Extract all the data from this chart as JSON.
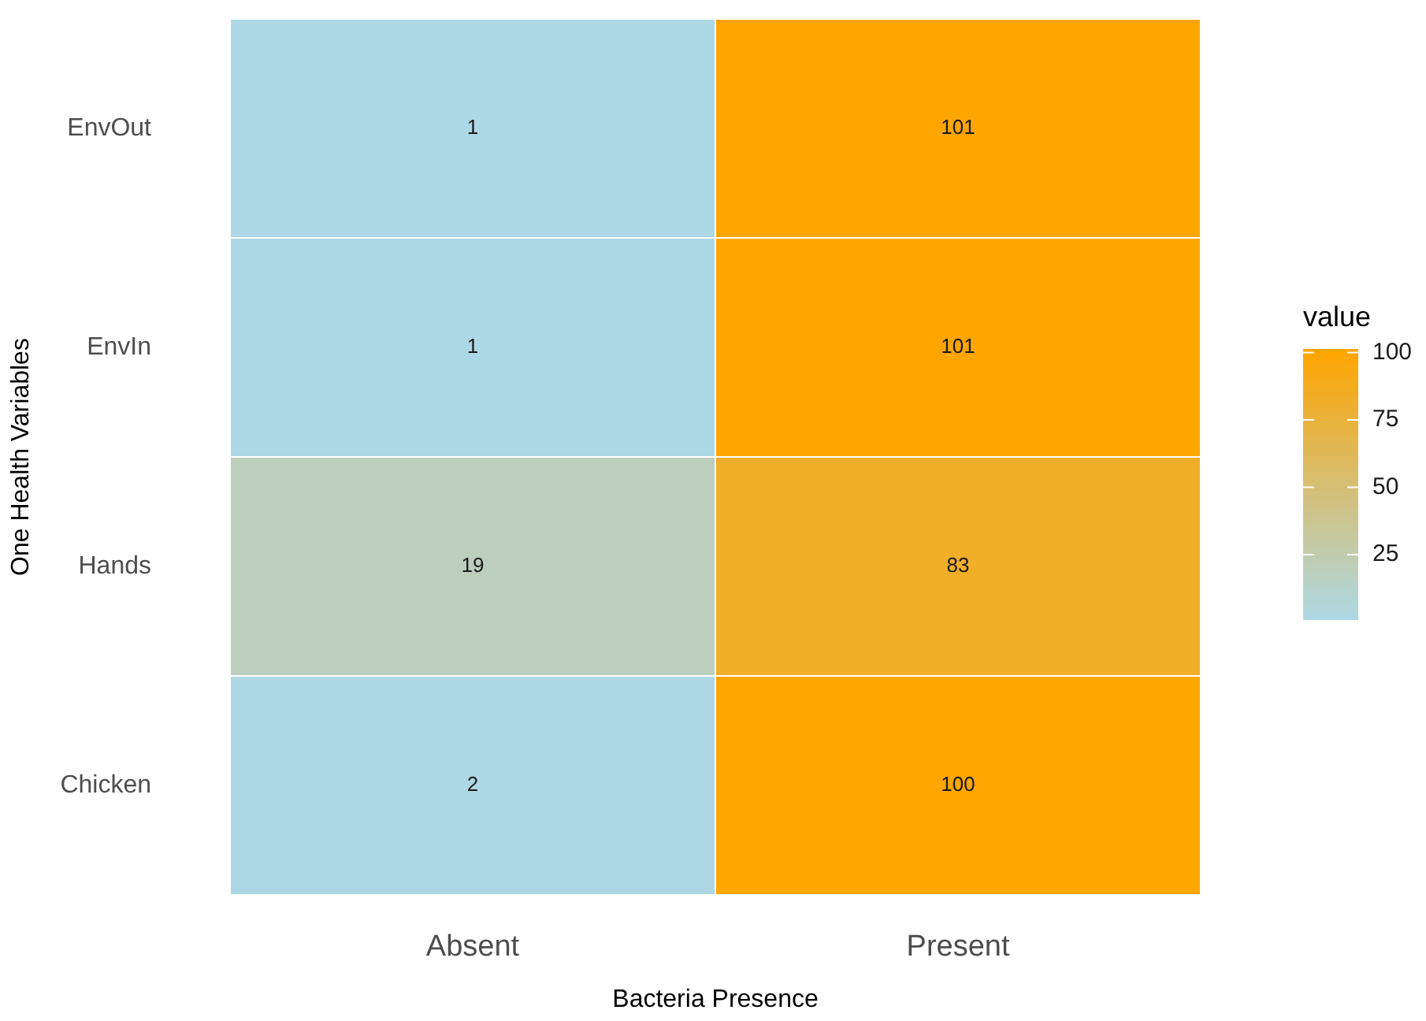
{
  "chart_data": {
    "type": "heatmap",
    "xlabel": "Bacteria Presence",
    "ylabel": "One Health Variables",
    "legend_title": "value",
    "categories": [
      "Absent",
      "Present"
    ],
    "y_categories": [
      "EnvOut",
      "EnvIn",
      "Hands",
      "Chicken"
    ],
    "cells": [
      [
        1,
        101
      ],
      [
        1,
        101
      ],
      [
        19,
        83
      ],
      [
        2,
        100
      ]
    ],
    "colors": [
      "#add8e6",
      "#ffa500"
    ],
    "clim": [
      1,
      101
    ],
    "cticks": [
      25,
      50,
      75,
      100
    ],
    "data_labels": true,
    "grid": false
  }
}
